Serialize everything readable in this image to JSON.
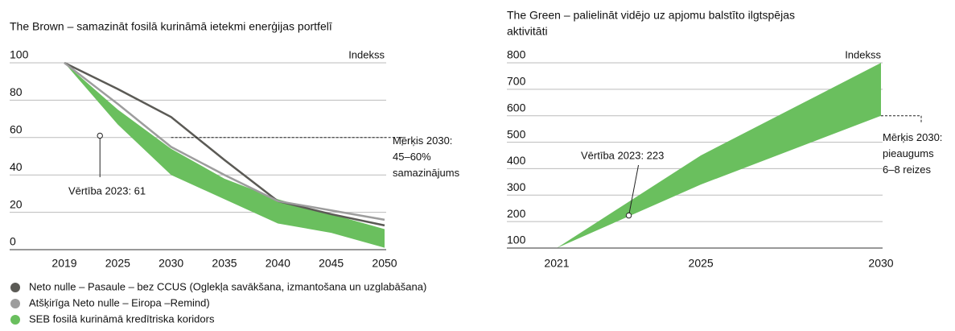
{
  "chart_data": [
    {
      "type": "line",
      "title": "The Brown – samazināt fosilā kurināmā ietekmi enerģijas portfelī",
      "y_label": "Indekss",
      "categories": [
        "2019",
        "2025",
        "2030",
        "2035",
        "2040",
        "2045",
        "2050"
      ],
      "series": [
        {
          "name": "Neto nulle – Pasaule – bez CCUS (Oglekļa savākšana, izmantošana un uzglabāšana)",
          "color": "#5b5a55",
          "values": [
            100,
            86,
            71,
            48,
            26,
            19,
            13
          ]
        },
        {
          "name": "Atšķirīga Neto nulle – Eiropa –Remind)",
          "color": "#9d9d9d",
          "values": [
            100,
            78,
            55,
            40,
            26,
            21,
            16
          ]
        }
      ],
      "band": {
        "name": "SEB fosilā kurināmā kredītriska koridors",
        "color": "#6abf5e",
        "high": [
          100,
          75,
          54,
          38,
          27,
          19,
          11
        ],
        "low": [
          100,
          67,
          40,
          27,
          14,
          9,
          1
        ]
      },
      "ylim": [
        0,
        100
      ],
      "yticks": [
        0,
        20,
        40,
        60,
        80,
        100
      ],
      "marker": {
        "x": 2023,
        "value": 61,
        "label": "Vērtība 2023: 61"
      },
      "target": {
        "x": 2030,
        "value": 60,
        "label": [
          "Mērķis 2030:",
          "45–60%",
          "samazinājums"
        ]
      }
    },
    {
      "type": "band",
      "title": [
        "The Green – palielināt vidējo uz apjomu balstīto ilgtspējas",
        "aktivitāti"
      ],
      "y_label": "Indekss",
      "x": [
        2021,
        2025,
        2030
      ],
      "xlim": [
        2021,
        2030
      ],
      "xticks": [
        2021,
        2025,
        2030
      ],
      "band": {
        "color": "#6abf5e",
        "high": [
          100,
          450,
          800
        ],
        "low": [
          100,
          340,
          600
        ]
      },
      "ylim": [
        100,
        800
      ],
      "yticks": [
        100,
        200,
        300,
        400,
        500,
        600,
        700,
        800
      ],
      "marker": {
        "x": 2023,
        "value": 223,
        "label": "Vērtība 2023: 223"
      },
      "target": {
        "x": 2030,
        "value": 600,
        "label": [
          "Mērķis 2030:",
          "pieaugums",
          "6–8 reizes"
        ]
      }
    }
  ]
}
